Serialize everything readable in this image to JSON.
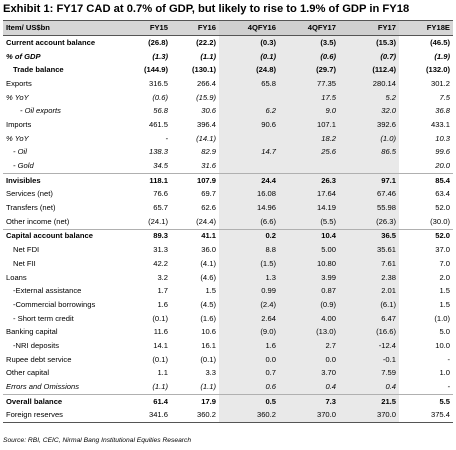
{
  "title": "Exhibit 1: FY17 CAD at 0.7% of GDP, but likely to rise to 1.9% of GDP in FY18",
  "table": {
    "headers": [
      "Item/ US$bn",
      "FY15",
      "FY16",
      "4QFY16",
      "4QFY17",
      "FY17",
      "FY18E"
    ],
    "rows": [
      {
        "label": "Current account balance",
        "indent": 0,
        "style": "bold",
        "values": [
          "(26.8)",
          "(22.2)",
          "(0.3)",
          "(3.5)",
          "(15.3)",
          "(46.5)"
        ]
      },
      {
        "label": "% of GDP",
        "indent": 0,
        "style": "bolditalic",
        "values": [
          "(1.3)",
          "(1.1)",
          "(0.1)",
          "(0.6)",
          "(0.7)",
          "(1.9)"
        ]
      },
      {
        "label": "Trade balance",
        "indent": 1,
        "style": "bold",
        "values": [
          "(144.9)",
          "(130.1)",
          "(24.8)",
          "(29.7)",
          "(112.4)",
          "(132.0)"
        ]
      },
      {
        "label": "Exports",
        "indent": 0,
        "style": "",
        "values": [
          "316.5",
          "266.4",
          "65.8",
          "77.35",
          "280.14",
          "301.2"
        ]
      },
      {
        "label": "% YoY",
        "indent": 0,
        "style": "italic",
        "values": [
          "(0.6)",
          "(15.9)",
          "",
          "17.5",
          "5.2",
          "7.5"
        ]
      },
      {
        "label": "- Oil exports",
        "indent": 2,
        "style": "italic",
        "values": [
          "56.8",
          "30.6",
          "6.2",
          "9.0",
          "32.0",
          "36.8"
        ]
      },
      {
        "label": "Imports",
        "indent": 0,
        "style": "",
        "values": [
          "461.5",
          "396.4",
          "90.6",
          "107.1",
          "392.6",
          "433.1"
        ]
      },
      {
        "label": "% YoY",
        "indent": 0,
        "style": "italic",
        "values": [
          "-",
          "(14.1)",
          "",
          "18.2",
          "(1.0)",
          "10.3"
        ]
      },
      {
        "label": "- Oil",
        "indent": 1,
        "style": "italic",
        "values": [
          "138.3",
          "82.9",
          "14.7",
          "25.6",
          "86.5",
          "99.6"
        ]
      },
      {
        "label": "- Gold",
        "indent": 1,
        "style": "italic",
        "values": [
          "34.5",
          "31.6",
          "",
          "",
          "",
          "20.0"
        ]
      },
      {
        "label": "Invisibles",
        "indent": 0,
        "style": "bold",
        "sep": true,
        "values": [
          "118.1",
          "107.9",
          "24.4",
          "26.3",
          "97.1",
          "85.4"
        ]
      },
      {
        "label": "Services (net)",
        "indent": 0,
        "style": "",
        "values": [
          "76.6",
          "69.7",
          "16.08",
          "17.64",
          "67.46",
          "63.4"
        ]
      },
      {
        "label": "Transfers (net)",
        "indent": 0,
        "style": "",
        "values": [
          "65.7",
          "62.6",
          "14.96",
          "14.19",
          "55.98",
          "52.0"
        ]
      },
      {
        "label": "Other income (net)",
        "indent": 0,
        "style": "",
        "values": [
          "(24.1)",
          "(24.4)",
          "(6.6)",
          "(5.5)",
          "(26.3)",
          "(30.0)"
        ]
      },
      {
        "label": "Capital account balance",
        "indent": 0,
        "style": "bold",
        "sep": true,
        "values": [
          "89.3",
          "41.1",
          "0.2",
          "10.4",
          "36.5",
          "52.0"
        ]
      },
      {
        "label": "Net FDI",
        "indent": 1,
        "style": "",
        "values": [
          "31.3",
          "36.0",
          "8.8",
          "5.00",
          "35.61",
          "37.0"
        ]
      },
      {
        "label": "Net FII",
        "indent": 1,
        "style": "",
        "values": [
          "42.2",
          "(4.1)",
          "(1.5)",
          "10.80",
          "7.61",
          "7.0"
        ]
      },
      {
        "label": "Loans",
        "indent": 0,
        "style": "",
        "values": [
          "3.2",
          "(4.6)",
          "1.3",
          "3.99",
          "2.38",
          "2.0"
        ]
      },
      {
        "label": "-External assistance",
        "indent": 1,
        "style": "",
        "values": [
          "1.7",
          "1.5",
          "0.99",
          "0.87",
          "2.01",
          "1.5"
        ]
      },
      {
        "label": "-Commercial borrowings",
        "indent": 1,
        "style": "",
        "values": [
          "1.6",
          "(4.5)",
          "(2.4)",
          "(0.9)",
          "(6.1)",
          "1.5"
        ]
      },
      {
        "label": "- Short term credit",
        "indent": 1,
        "style": "",
        "values": [
          "(0.1)",
          "(1.6)",
          "2.64",
          "4.00",
          "6.47",
          "(1.0)"
        ]
      },
      {
        "label": "Banking capital",
        "indent": 0,
        "style": "",
        "values": [
          "11.6",
          "10.6",
          "(9.0)",
          "(13.0)",
          "(16.6)",
          "5.0"
        ]
      },
      {
        "label": "-NRI deposits",
        "indent": 1,
        "style": "",
        "values": [
          "14.1",
          "16.1",
          "1.6",
          "2.7",
          "-12.4",
          "10.0"
        ]
      },
      {
        "label": "Rupee debt service",
        "indent": 0,
        "style": "",
        "values": [
          "(0.1)",
          "(0.1)",
          "0.0",
          "0.0",
          "-0.1",
          "-"
        ]
      },
      {
        "label": "Other capital",
        "indent": 0,
        "style": "",
        "values": [
          "1.1",
          "3.3",
          "0.7",
          "3.70",
          "7.59",
          "1.0"
        ]
      },
      {
        "label": "Errors and Omissions",
        "indent": 0,
        "style": "italic",
        "values": [
          "(1.1)",
          "(1.1)",
          "0.6",
          "0.4",
          "0.4",
          "-"
        ]
      },
      {
        "label": "Overall balance",
        "indent": 0,
        "style": "bold",
        "sep": true,
        "values": [
          "61.4",
          "17.9",
          "0.5",
          "7.3",
          "21.5",
          "5.5"
        ]
      },
      {
        "label": "Foreign reserves",
        "indent": 0,
        "style": "",
        "last": true,
        "values": [
          "341.6",
          "360.2",
          "360.2",
          "370.0",
          "370.0",
          "375.4"
        ]
      }
    ]
  },
  "source": "Source: RBI, CEIC, Nirmal Bang Institutional Equities Research"
}
